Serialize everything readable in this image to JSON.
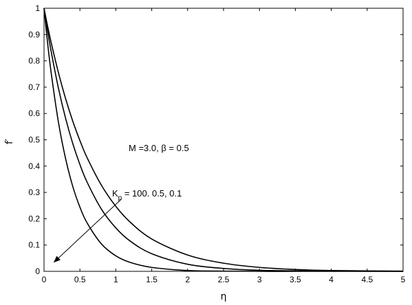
{
  "chart_data": {
    "type": "line",
    "xlabel": "η",
    "ylabel": "f′",
    "xlim": [
      0,
      5
    ],
    "ylim": [
      0,
      1
    ],
    "x_ticks": [
      "0",
      "0.5",
      "1",
      "1.5",
      "2",
      "2.5",
      "3",
      "3.5",
      "4",
      "4.5",
      "5"
    ],
    "y_ticks": [
      "0",
      "0.1",
      "0.2",
      "0.3",
      "0.4",
      "0.5",
      "0.6",
      "0.7",
      "0.8",
      "0.9",
      "1"
    ],
    "grid": false,
    "line_color": "#000000",
    "series": [
      {
        "x": [
          0,
          0.05,
          0.1,
          0.2,
          0.3,
          0.4,
          0.5,
          0.6,
          0.8,
          1.0,
          1.2,
          1.5,
          2.0,
          2.5,
          3.0,
          3.5,
          4.0,
          5.0
        ],
        "values": [
          1.0,
          0.868,
          0.754,
          0.568,
          0.429,
          0.323,
          0.244,
          0.184,
          0.104,
          0.059,
          0.034,
          0.015,
          0.003,
          0.001,
          0.0,
          0.0,
          0.0,
          0.0
        ]
      },
      {
        "x": [
          0,
          0.05,
          0.1,
          0.2,
          0.3,
          0.4,
          0.5,
          0.6,
          0.8,
          1.0,
          1.2,
          1.5,
          2.0,
          2.5,
          3.0,
          3.5,
          4.0,
          5.0
        ],
        "values": [
          1.0,
          0.914,
          0.835,
          0.697,
          0.582,
          0.486,
          0.406,
          0.339,
          0.236,
          0.165,
          0.115,
          0.067,
          0.027,
          0.011,
          0.004,
          0.002,
          0.001,
          0.0
        ]
      },
      {
        "x": [
          0,
          0.05,
          0.1,
          0.2,
          0.3,
          0.4,
          0.5,
          0.6,
          0.8,
          1.0,
          1.2,
          1.5,
          2.0,
          2.5,
          3.0,
          3.5,
          4.0,
          5.0
        ],
        "values": [
          1.0,
          0.932,
          0.869,
          0.756,
          0.657,
          0.571,
          0.497,
          0.432,
          0.327,
          0.247,
          0.187,
          0.123,
          0.062,
          0.031,
          0.015,
          0.007,
          0.003,
          0.001
        ]
      }
    ],
    "annotations": {
      "params_label": "M =3.0, β = 0.5",
      "kp_label_main": "K",
      "kp_label_sub": "p",
      "kp_label_rest": " = 100. 0.5, 0.1"
    },
    "arrow": {
      "from": [
        1.08,
        0.275
      ],
      "to": [
        0.14,
        0.035
      ]
    }
  }
}
